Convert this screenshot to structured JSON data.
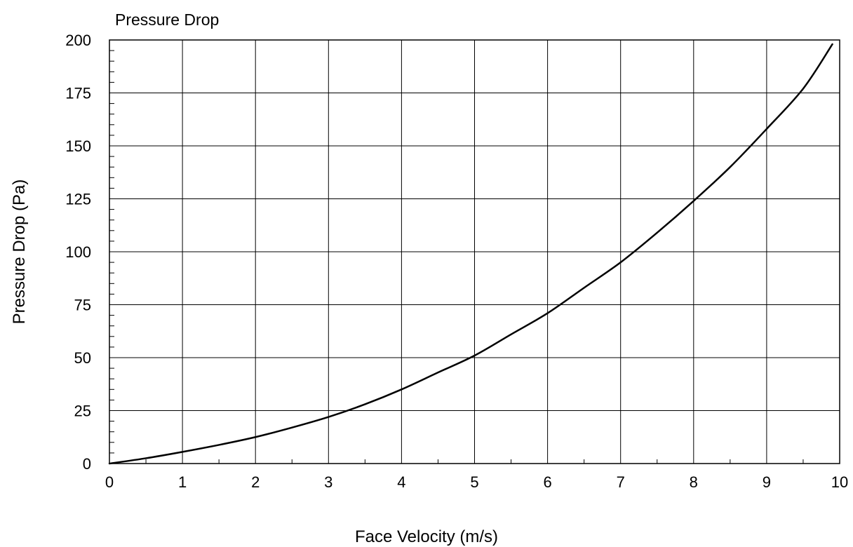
{
  "chart_data": {
    "type": "line",
    "title": "Pressure Drop",
    "xlabel": "Face Velocity (m/s)",
    "ylabel": "Pressure Drop (Pa)",
    "xlim": [
      0,
      10
    ],
    "ylim": [
      0,
      200
    ],
    "x_ticks": [
      "0",
      "1",
      "2",
      "3",
      "4",
      "5",
      "6",
      "7",
      "8",
      "9",
      "10"
    ],
    "y_ticks": [
      "0",
      "25",
      "50",
      "75",
      "100",
      "125",
      "150",
      "175",
      "200"
    ],
    "grid": true,
    "series": [
      {
        "x": [
          0,
          0.5,
          1,
          1.5,
          2,
          2.5,
          3,
          3.5,
          4,
          4.5,
          5,
          5.5,
          6,
          6.5,
          7,
          7.5,
          8,
          8.5,
          9,
          9.5,
          9.9
        ],
        "y": [
          0,
          2.5,
          5.5,
          8.8,
          12.5,
          17,
          22,
          28,
          35,
          43,
          51,
          61,
          71,
          83,
          95,
          109,
          124,
          140,
          158,
          177,
          198
        ],
        "color": "#000000"
      }
    ]
  }
}
